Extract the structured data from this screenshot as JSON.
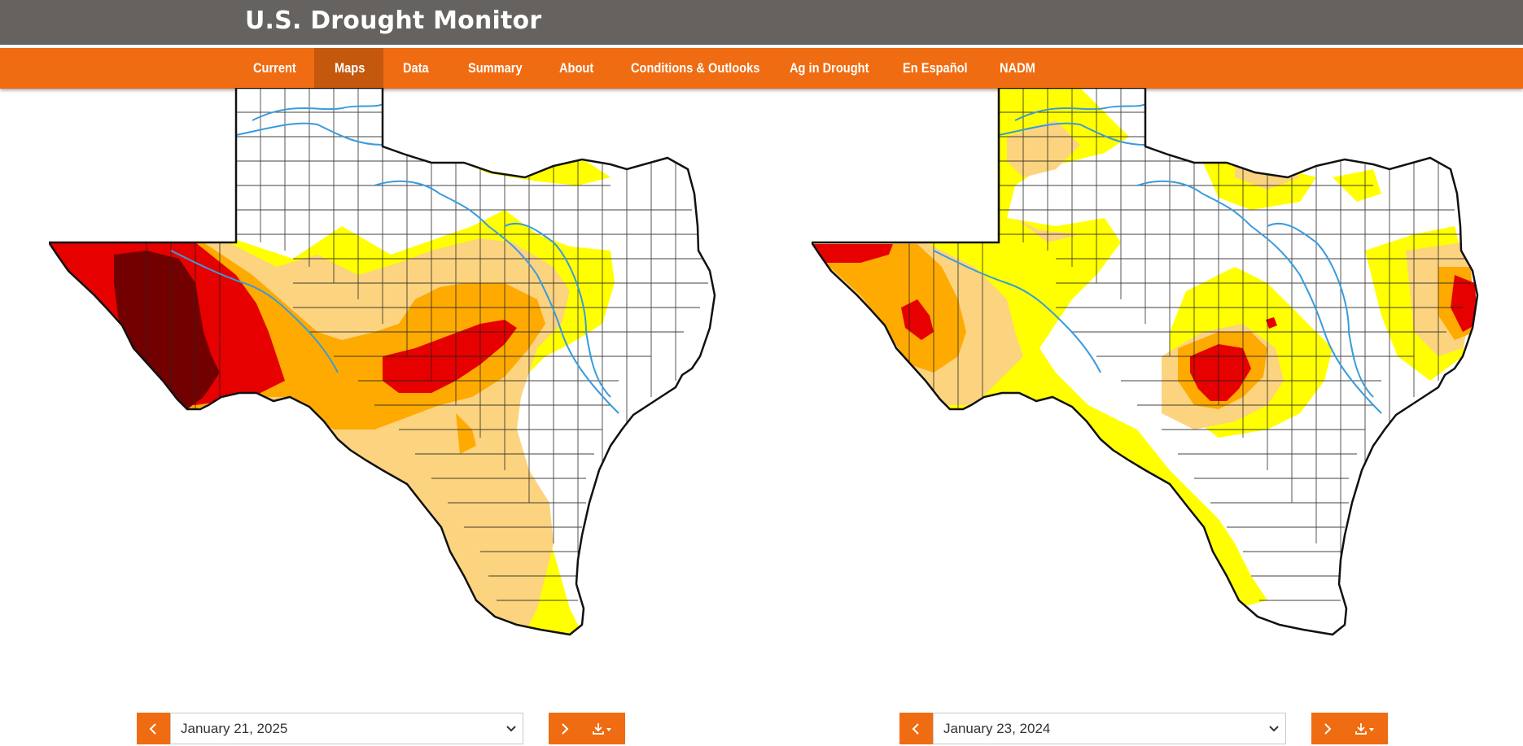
{
  "header": {
    "title": "U.S. Drought Monitor"
  },
  "nav": {
    "items": [
      {
        "label": "Current"
      },
      {
        "label": "Maps"
      },
      {
        "label": "Data"
      },
      {
        "label": "Summary"
      },
      {
        "label": "About"
      },
      {
        "label": "Conditions & Outlooks"
      },
      {
        "label": "Ag in Drought"
      },
      {
        "label": "En Español"
      },
      {
        "label": "NADM"
      }
    ],
    "active": "Maps"
  },
  "colors": {
    "header_bg": "#656260",
    "nav_bg": "#ef6c12",
    "nav_active_bg": "#c4580d",
    "D0": "#ffff00",
    "D1": "#fcd37f",
    "D2": "#ffaa00",
    "D3": "#e60000",
    "D4": "#730000",
    "river": "#3a9bdc"
  },
  "maps": [
    {
      "region": "Texas",
      "date": "January 21, 2025",
      "icons": [
        "chevron-left-icon",
        "chevron-down-icon",
        "chevron-right-icon",
        "download-icon"
      ]
    },
    {
      "region": "Texas",
      "date": "January 23, 2024",
      "icons": [
        "chevron-left-icon",
        "chevron-down-icon",
        "chevron-right-icon",
        "download-icon"
      ]
    }
  ]
}
